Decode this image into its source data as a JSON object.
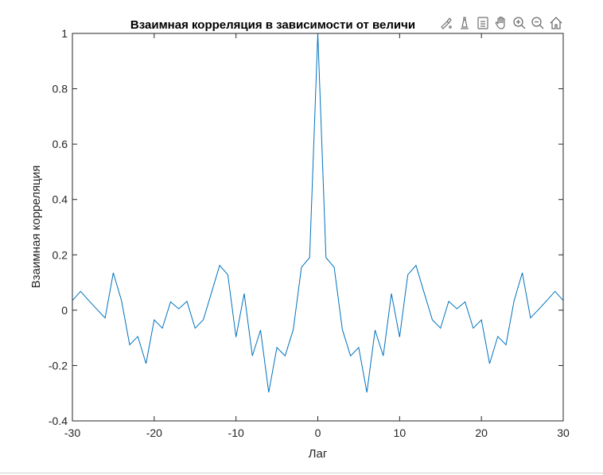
{
  "chart_data": {
    "type": "line",
    "title": "Взаимная корреляция в зависимости от величи",
    "xlabel": "Лаг",
    "ylabel": "Взаимная корреляция",
    "xlim": [
      -30,
      30
    ],
    "ylim": [
      -0.4,
      1
    ],
    "xticks": [
      -30,
      -20,
      -10,
      0,
      10,
      20,
      30
    ],
    "xtick_labels": [
      "-30",
      "-20",
      "-10",
      "0",
      "10",
      "20",
      "30"
    ],
    "yticks": [
      -0.4,
      -0.2,
      0,
      0.2,
      0.4,
      0.6,
      0.8,
      1
    ],
    "ytick_labels": [
      "-0.4",
      "-0.2",
      "0",
      "0.2",
      "0.4",
      "0.6",
      "0.8",
      "1"
    ],
    "grid": false,
    "line_color": "#0072bd",
    "x": [
      -30,
      -29,
      -28,
      -27,
      -26,
      -25,
      -24,
      -23,
      -22,
      -21,
      -20,
      -19,
      -18,
      -17,
      -16,
      -15,
      -14,
      -13,
      -12,
      -11,
      -10,
      -9,
      -8,
      -7,
      -6,
      -5,
      -4,
      -3,
      -2,
      -1,
      0,
      1,
      2,
      3,
      4,
      5,
      6,
      7,
      8,
      9,
      10,
      11,
      12,
      13,
      14,
      15,
      16,
      17,
      18,
      19,
      20,
      21,
      22,
      23,
      24,
      25,
      26,
      27,
      28,
      29,
      30
    ],
    "y": [
      0.035,
      0.068,
      0.035,
      0.003,
      -0.028,
      0.135,
      0.035,
      -0.125,
      -0.095,
      -0.193,
      -0.035,
      -0.065,
      0.03,
      0.005,
      0.032,
      -0.065,
      -0.035,
      0.063,
      0.162,
      0.128,
      -0.097,
      0.06,
      -0.165,
      -0.072,
      -0.297,
      -0.135,
      -0.165,
      -0.07,
      0.155,
      0.19,
      1.0,
      0.19,
      0.155,
      -0.07,
      -0.165,
      -0.135,
      -0.297,
      -0.072,
      -0.165,
      0.06,
      -0.097,
      0.128,
      0.162,
      0.063,
      -0.035,
      -0.065,
      0.032,
      0.005,
      0.03,
      -0.065,
      -0.035,
      -0.193,
      -0.095,
      -0.125,
      0.035,
      0.135,
      -0.028,
      0.003,
      0.035,
      0.068,
      0.035
    ]
  },
  "toolbar": {
    "buttons": [
      {
        "name": "brush-icon"
      },
      {
        "name": "data-tips-icon"
      },
      {
        "name": "legend-toggle-icon"
      },
      {
        "name": "pan-hand-icon"
      },
      {
        "name": "zoom-in-icon"
      },
      {
        "name": "zoom-out-icon"
      },
      {
        "name": "home-icon"
      }
    ]
  }
}
